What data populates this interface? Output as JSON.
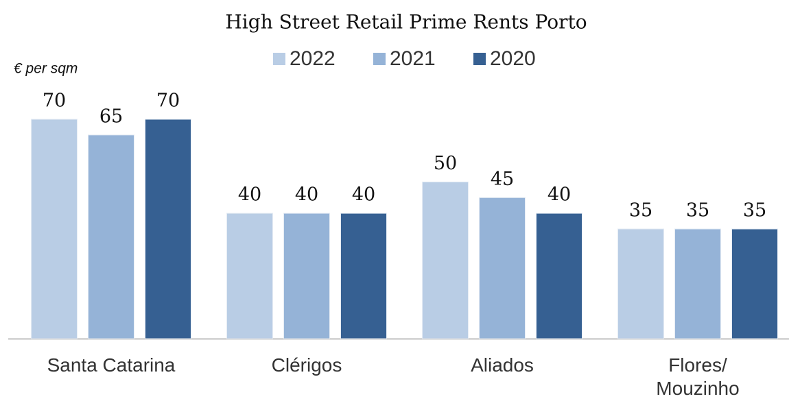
{
  "chart_data": {
    "type": "bar",
    "title": "High Street Retail Prime Rents Porto",
    "y_label": "€ per sqm",
    "categories": [
      "Santa Catarina",
      "Clérigos",
      "Aliados",
      "Flores/\nMouzinho"
    ],
    "series": [
      {
        "name": "2022",
        "color": "#b9cde5",
        "values": [
          70,
          40,
          50,
          35
        ]
      },
      {
        "name": "2021",
        "color": "#95b3d7",
        "values": [
          65,
          40,
          45,
          35
        ]
      },
      {
        "name": "2020",
        "color": "#366092",
        "values": [
          70,
          40,
          40,
          35
        ]
      }
    ],
    "ylim": [
      0,
      70
    ]
  }
}
